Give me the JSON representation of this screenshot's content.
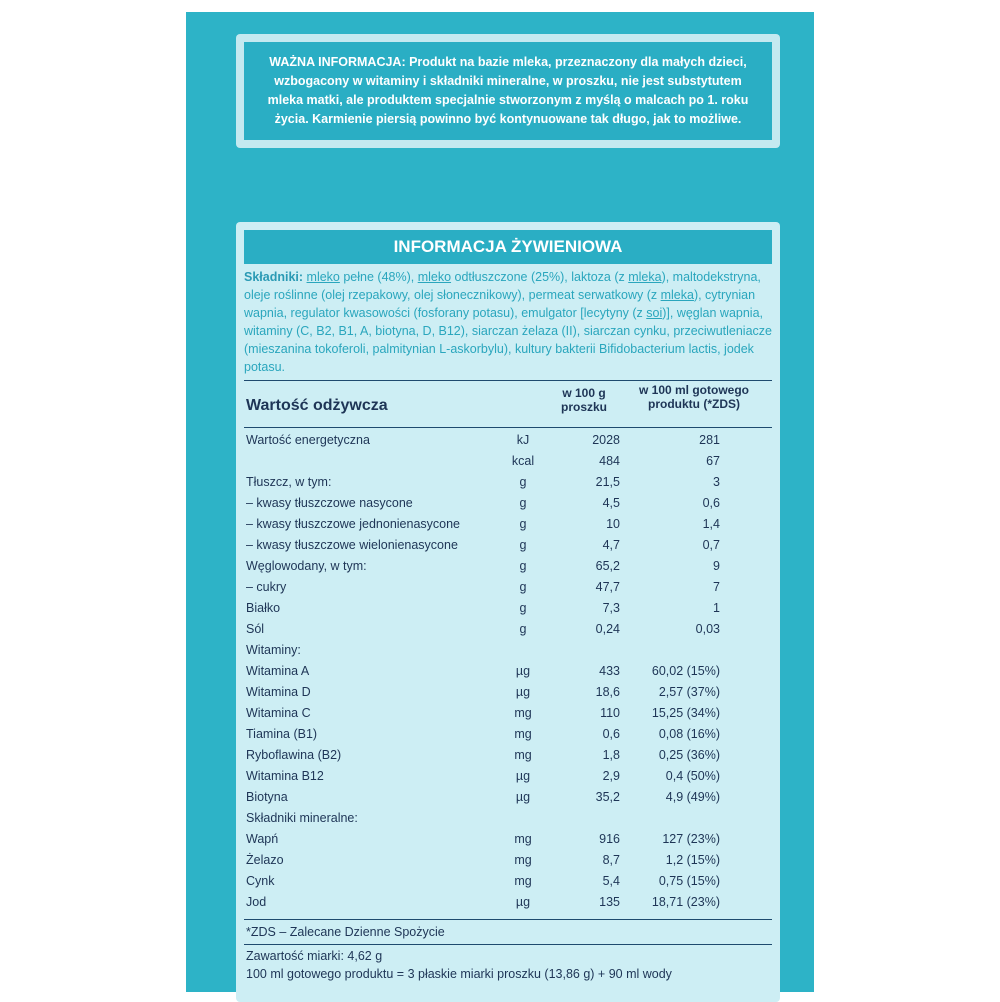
{
  "notice": "WAŻNA INFORMACJA: Produkt na bazie mleka, przeznaczony dla małych dzieci, wzbogacony w witaminy i składniki mineralne, w proszku, nie jest substytutem mleka matki, ale produktem specjalnie stworzonym z myślą o malcach po 1. roku życia. Karmienie piersią powinno być kontynuowane tak długo, jak to możliwe.",
  "title": "INFORMACJA ŻYWIENIOWA",
  "ingredients_label": "Składniki:",
  "ingredients": [
    {
      "t": " "
    },
    {
      "t": "mleko",
      "u": true
    },
    {
      "t": " pełne (48%), "
    },
    {
      "t": "mleko",
      "u": true
    },
    {
      "t": " odtłuszczone (25%), laktoza (z "
    },
    {
      "t": "mleka",
      "u": true
    },
    {
      "t": "), maltodekstryna, oleje roślinne (olej rzepakowy, olej słonecznikowy), permeat serwatkowy (z "
    },
    {
      "t": "mleka",
      "u": true
    },
    {
      "t": "), cytrynian wapnia, regulator kwasowości (fosforany potasu), emulgator [lecytyny (z "
    },
    {
      "t": "soi",
      "u": true
    },
    {
      "t": ")], węglan wapnia, witaminy (C, B2, B1, A, biotyna, D, B12), siarczan żelaza (II), siarczan cynku, przeciwutleniacze (mieszanina tokoferoli, palmitynian L-askorbylu), kultury bakterii Bifidobacterium lactis, jodek potasu."
    }
  ],
  "table": {
    "heading": "Wartość odżywcza",
    "col100g": "w 100 g proszku",
    "col100ml": "w 100 ml gotowego produktu (*ZDS)",
    "rows": [
      [
        "Wartość energetyczna",
        "kJ",
        "2028",
        "281"
      ],
      [
        "",
        "kcal",
        "484",
        "67"
      ],
      [
        "Tłuszcz, w tym:",
        "g",
        "21,5",
        "3"
      ],
      [
        "–  kwasy tłuszczowe nasycone",
        "g",
        "4,5",
        "0,6"
      ],
      [
        "–  kwasy tłuszczowe jednonienasycone",
        "g",
        "10",
        "1,4"
      ],
      [
        "–  kwasy tłuszczowe wielonienasycone",
        "g",
        "4,7",
        "0,7"
      ],
      [
        "Węglowodany, w tym:",
        "g",
        "65,2",
        "9"
      ],
      [
        "–  cukry",
        "g",
        "47,7",
        "7"
      ],
      [
        "Białko",
        "g",
        "7,3",
        "1"
      ],
      [
        "Sól",
        "g",
        "0,24",
        "0,03"
      ],
      [
        "Witaminy:",
        "",
        "",
        ""
      ],
      [
        "Witamina A",
        "µg",
        "433",
        "60,02 (15%)"
      ],
      [
        "Witamina D",
        "µg",
        "18,6",
        "2,57 (37%)"
      ],
      [
        "Witamina C",
        "mg",
        "110",
        "15,25 (34%)"
      ],
      [
        "Tiamina (B1)",
        "mg",
        "0,6",
        "0,08 (16%)"
      ],
      [
        "Ryboflawina (B2)",
        "mg",
        "1,8",
        "0,25 (36%)"
      ],
      [
        "Witamina B12",
        "µg",
        "2,9",
        "0,4 (50%)"
      ],
      [
        "Biotyna",
        "µg",
        "35,2",
        "4,9 (49%)"
      ],
      [
        "Składniki mineralne:",
        "",
        "",
        ""
      ],
      [
        "Wapń",
        "mg",
        "916",
        "127 (23%)"
      ],
      [
        "Żelazo",
        "mg",
        "8,7",
        "1,2 (15%)"
      ],
      [
        "Cynk",
        "mg",
        "5,4",
        "0,75 (15%)"
      ],
      [
        "Jod",
        "µg",
        "135",
        "18,71 (23%)"
      ]
    ]
  },
  "footnote": "*ZDS – Zalecane Dzienne Spożycie",
  "scoop": "Zawartość miarki: 4,62 g",
  "prep": "100 ml gotowego produktu = 3 płaskie miarki proszku (13,86 g) + 90 ml wody",
  "colors": {
    "panel": "#2db3c7",
    "box": "#cdeef4",
    "text": "#1e3556"
  }
}
